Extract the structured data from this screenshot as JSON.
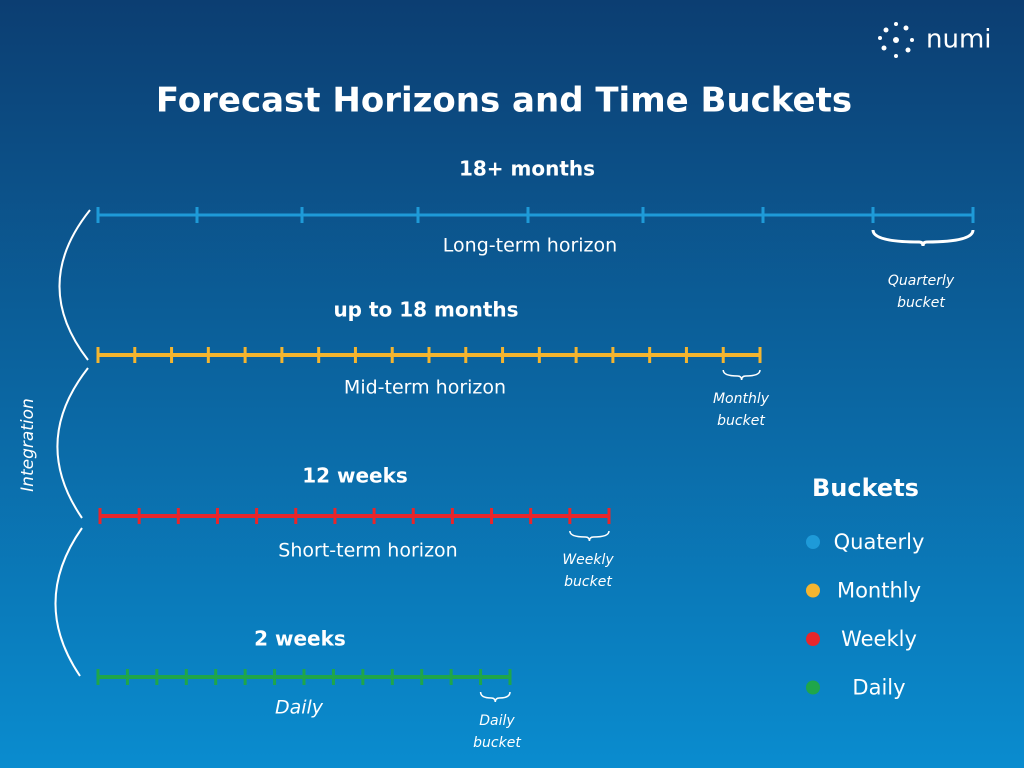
{
  "logo": {
    "text": "numi"
  },
  "title": "Forecast Horizons and Time Buckets",
  "side_label": "Integration",
  "horizons": [
    {
      "duration": "18+ months",
      "name": "Long-term horizon",
      "bucket": [
        "Quarterly",
        "bucket"
      ],
      "color": "#1e9ad8"
    },
    {
      "duration": "up to 18 months",
      "name": "Mid-term horizon",
      "bucket": [
        "Monthly",
        "bucket"
      ],
      "color": "#f4b52f"
    },
    {
      "duration": "12 weeks",
      "name": "Short-term horizon",
      "bucket": [
        "Weekly",
        "bucket"
      ],
      "color": "#e8262b"
    },
    {
      "duration": "2 weeks",
      "name": "Daily",
      "bucket": [
        "Daily",
        "bucket"
      ],
      "color": "#1fa64a"
    }
  ],
  "legend": {
    "title": "Buckets",
    "items": [
      {
        "label": "Quaterly",
        "color": "#1e9ad8"
      },
      {
        "label": "Monthly",
        "color": "#f4b52f"
      },
      {
        "label": "Weekly",
        "color": "#e8262b"
      },
      {
        "label": "Daily",
        "color": "#1fa64a"
      }
    ]
  }
}
